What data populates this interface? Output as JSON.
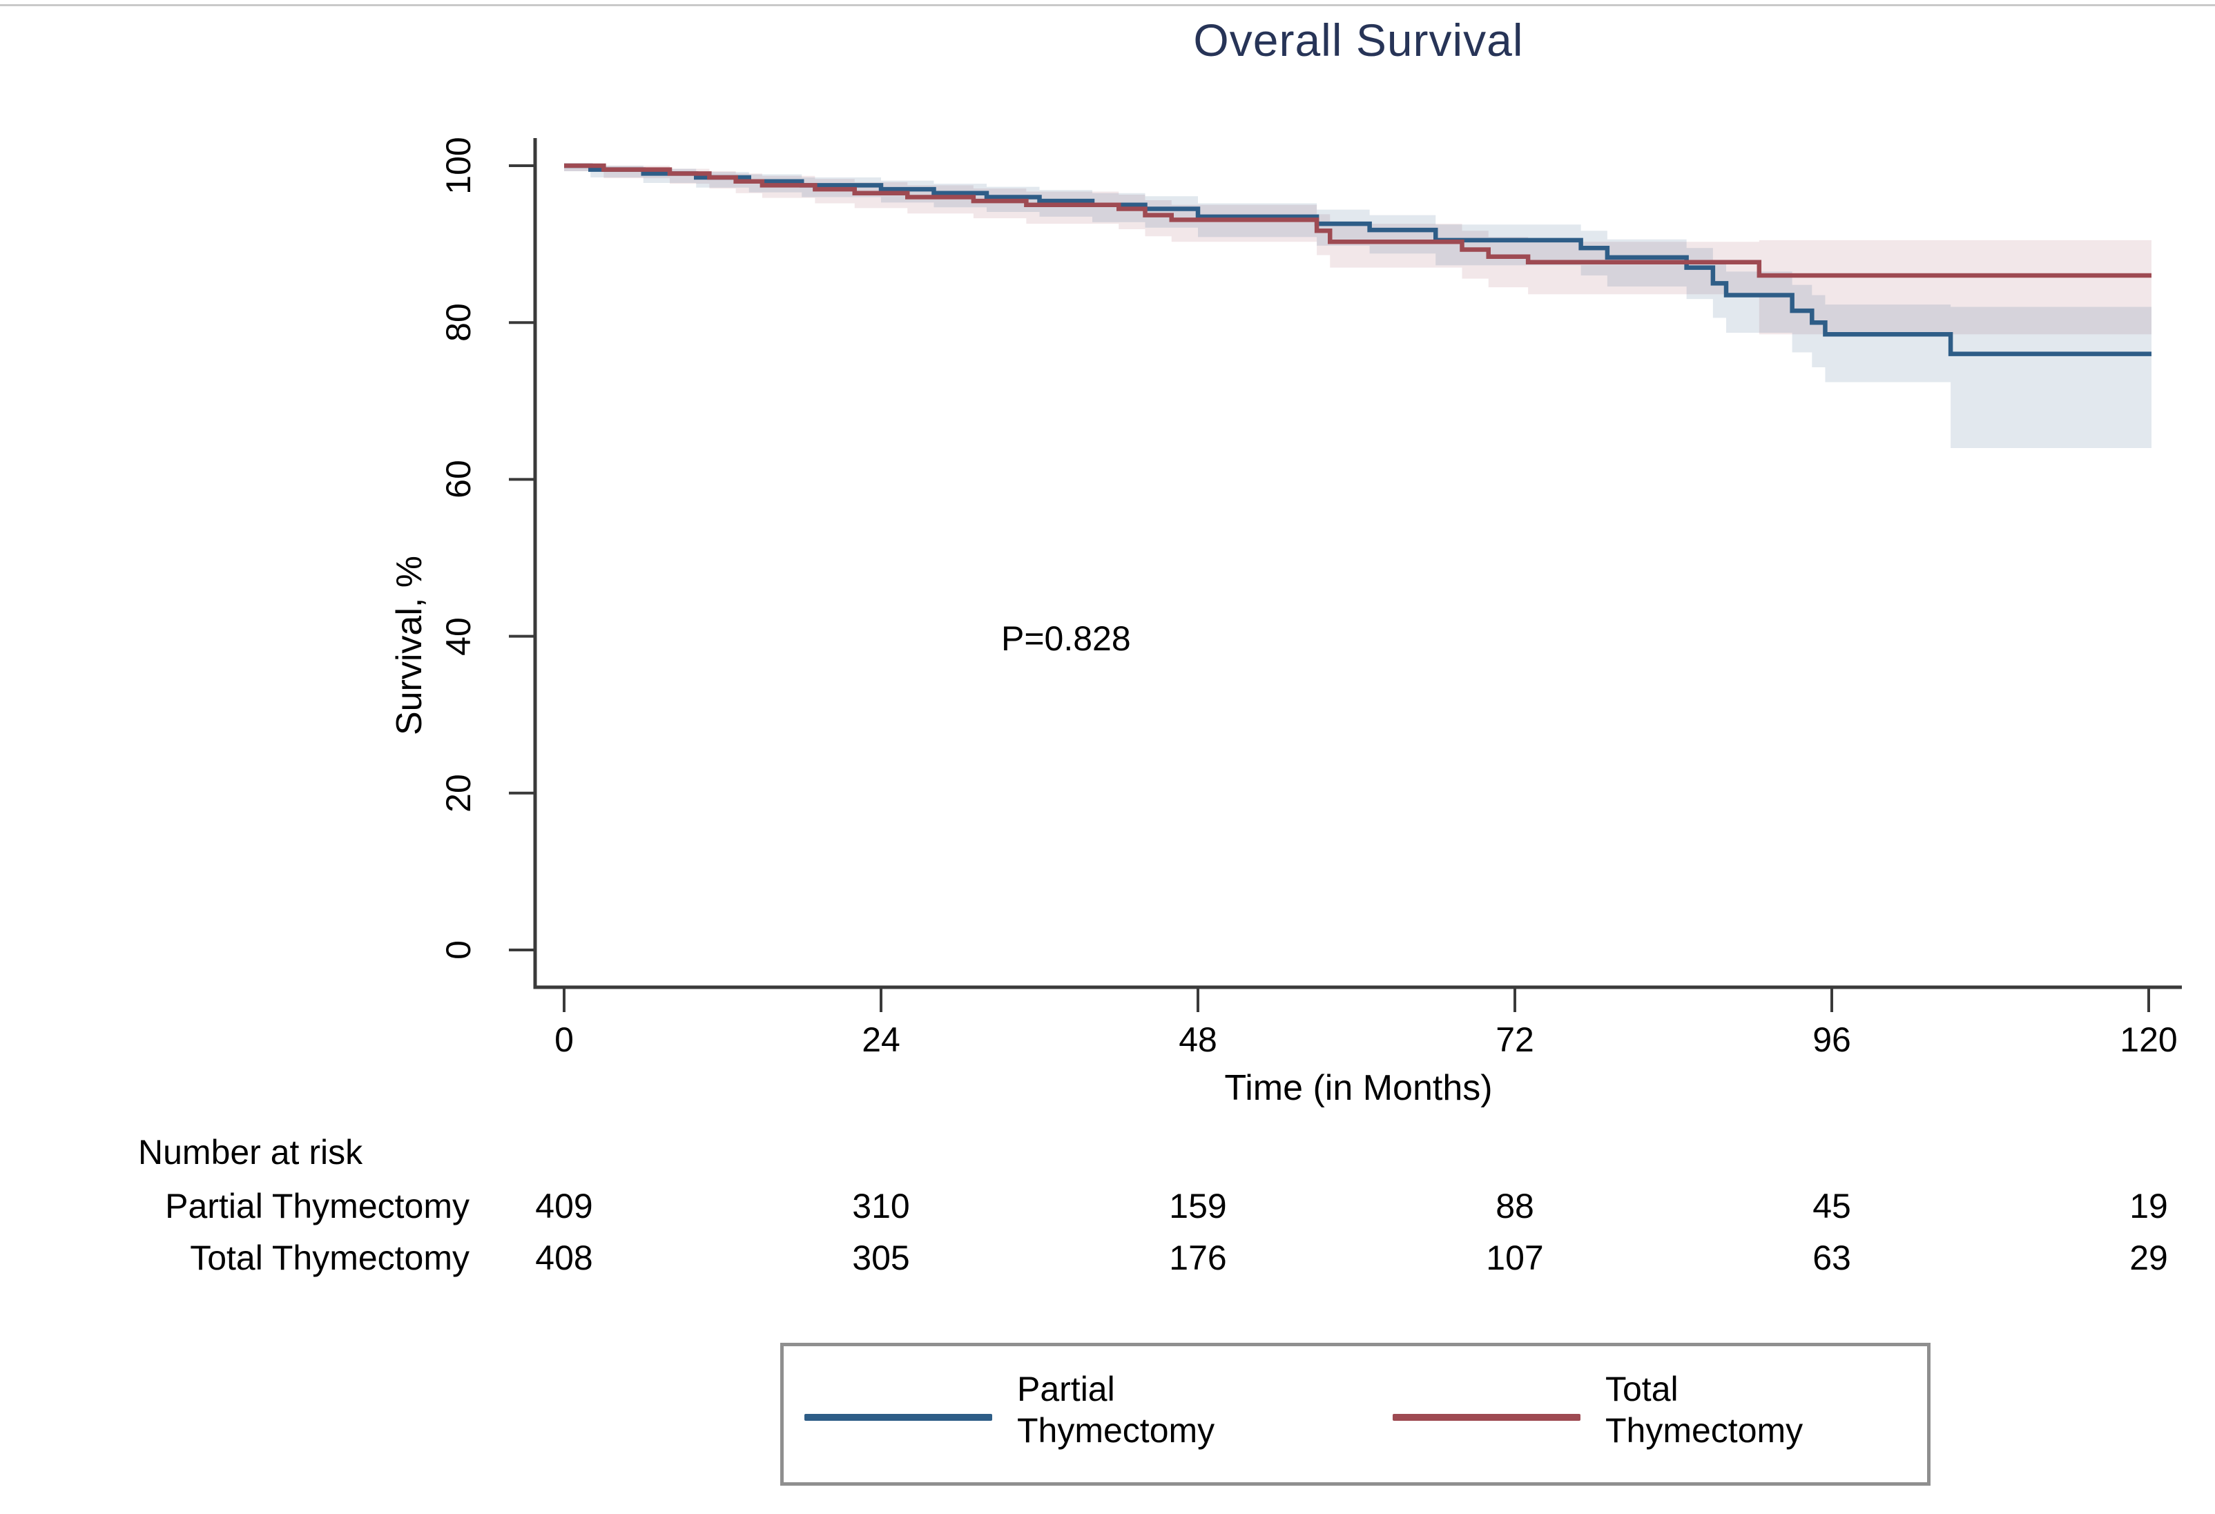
{
  "page": {
    "background": "#ffffff",
    "top_rule_color": "#c9c9c9"
  },
  "chart_data": {
    "type": "kaplan-meier-step",
    "title": "Overall Survival",
    "title_color": "#273457",
    "p_value_label": "P=0.828",
    "x_axis": {
      "label": "Time (in Months)",
      "ticks": [
        0,
        24,
        48,
        72,
        96,
        120
      ],
      "range": [
        0,
        120
      ]
    },
    "y_axis": {
      "label": "Survival, %",
      "ticks": [
        100,
        80,
        60,
        40,
        20,
        0
      ],
      "range": [
        0,
        100
      ]
    },
    "axis_color": "#3a3a3a",
    "legend_position": "bottom-center",
    "grid": false,
    "series": [
      {
        "name": "Partial Thymectomy",
        "color": "#2e5d87",
        "band_color": "rgba(47,94,136,0.14)",
        "x": [
          0,
          2,
          6,
          10,
          14,
          18,
          24,
          28,
          32,
          36,
          40,
          44,
          48,
          57,
          61,
          66,
          77,
          79,
          85,
          87,
          88,
          93,
          94.5,
          95.5,
          105,
          120
        ],
        "y": [
          100,
          99.5,
          99,
          98.5,
          98,
          97.5,
          97,
          96.5,
          96,
          95.5,
          95,
          94.5,
          93.5,
          92.6,
          91.8,
          90.5,
          89.5,
          88.3,
          87,
          85,
          83.5,
          81.5,
          80,
          78.5,
          76,
          76
        ],
        "ci_upper": [
          100,
          100,
          99.6,
          99.2,
          98.9,
          98.5,
          98.1,
          97.7,
          97.3,
          96.9,
          96.5,
          96.1,
          95.2,
          94.4,
          93.7,
          92.5,
          91.7,
          90.6,
          89.5,
          87.8,
          86.5,
          84.8,
          83.5,
          82.3,
          82,
          82
        ],
        "ci_lower": [
          99.3,
          98.5,
          97.8,
          97.2,
          96.6,
          96.0,
          95.3,
          94.7,
          94.1,
          93.5,
          92.8,
          92.1,
          90.9,
          89.8,
          88.8,
          87.3,
          86.0,
          84.6,
          83.0,
          80.6,
          78.7,
          76.2,
          74.3,
          72.4,
          64,
          64
        ]
      },
      {
        "name": "Total Thymectomy",
        "color": "#9e4a52",
        "band_color": "rgba(158,73,82,0.13)",
        "x": [
          0,
          3,
          8,
          11,
          13,
          15,
          19,
          22,
          26,
          31,
          35,
          42,
          44,
          46,
          57,
          58,
          68,
          70,
          73,
          90.5,
          120
        ],
        "y": [
          100,
          99.5,
          99,
          98.5,
          98,
          97.5,
          97,
          96.5,
          96,
          95.5,
          95,
          94.5,
          93.7,
          93.1,
          91.7,
          90.3,
          89.3,
          88.4,
          87.7,
          86,
          86
        ],
        "ci_upper": [
          100,
          100,
          99.6,
          99.3,
          99,
          98.7,
          98.3,
          97.9,
          97.5,
          97.1,
          96.7,
          96.3,
          95.6,
          95.0,
          93.8,
          92.6,
          91.7,
          90.9,
          90.3,
          90.5,
          90.5
        ],
        "ci_lower": [
          99.3,
          98.4,
          97.7,
          97.1,
          96.5,
          95.9,
          95.2,
          94.6,
          93.9,
          93.3,
          92.6,
          91.9,
          91.0,
          90.3,
          88.6,
          87.0,
          85.6,
          84.5,
          83.6,
          78.5,
          78.5
        ]
      }
    ],
    "risk_table": {
      "header": "Number at risk",
      "time_points": [
        0,
        24,
        48,
        72,
        96,
        120
      ],
      "rows": [
        {
          "label": "Partial Thymectomy",
          "values": [
            409,
            310,
            159,
            88,
            45,
            19
          ]
        },
        {
          "label": "Total Thymectomy",
          "values": [
            408,
            305,
            176,
            107,
            63,
            29
          ]
        }
      ]
    },
    "legend": {
      "items": [
        {
          "line1": "Partial",
          "line2": "Thymectomy",
          "color": "#2e5d87"
        },
        {
          "line1": "Total",
          "line2": "Thymectomy",
          "color": "#9e4a52"
        }
      ]
    }
  }
}
